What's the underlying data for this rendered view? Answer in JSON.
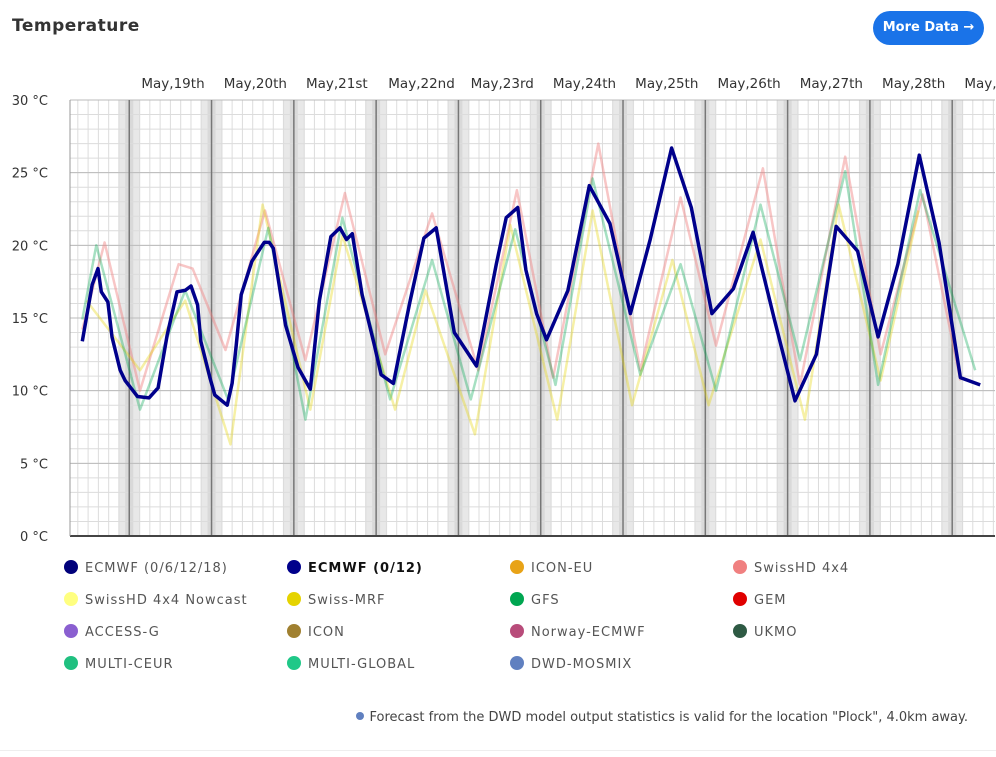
{
  "header": {
    "title": "Temperature",
    "button": "More Data →"
  },
  "chart_data": {
    "type": "line",
    "grid": true,
    "xlim": [
      0.28,
      11.52
    ],
    "xticks": [
      {
        "value": 1.5,
        "label": "May,19th"
      },
      {
        "value": 2.5,
        "label": "May,20th"
      },
      {
        "value": 3.5,
        "label": "May,21st"
      },
      {
        "value": 4.5,
        "label": "May,22nd"
      },
      {
        "value": 5.5,
        "label": "May,23rd"
      },
      {
        "value": 6.5,
        "label": "May,24th"
      },
      {
        "value": 7.5,
        "label": "May,25th"
      },
      {
        "value": 8.5,
        "label": "May,26th"
      },
      {
        "value": 9.5,
        "label": "May,27th"
      },
      {
        "value": 10.5,
        "label": "May,28th"
      },
      {
        "value": 11.5,
        "label": "May,"
      }
    ],
    "ylim": [
      0,
      30
    ],
    "yticks": [
      {
        "value": 0,
        "label": "0 °C"
      },
      {
        "value": 5,
        "label": "5 °C"
      },
      {
        "value": 10,
        "label": "10 °C"
      },
      {
        "value": 15,
        "label": "15 °C"
      },
      {
        "value": 20,
        "label": "20 °C"
      },
      {
        "value": 25,
        "label": "25 °C"
      },
      {
        "value": 30,
        "label": "30 °C"
      }
    ],
    "series": [
      {
        "name": "ECMWF (0/6/12/18)",
        "color": "#00007a",
        "x": [],
        "values": []
      },
      {
        "name": "ECMWF (0/12)",
        "color": "#00008b",
        "bold": true,
        "x": [
          0.43,
          0.55,
          0.62,
          0.66,
          0.74,
          0.79,
          0.89,
          0.95,
          1.1,
          1.24,
          1.35,
          1.46,
          1.58,
          1.68,
          1.75,
          1.83,
          1.87,
          1.98,
          2.04,
          2.19,
          2.25,
          2.3,
          2.36,
          2.49,
          2.64,
          2.7,
          2.75,
          2.9,
          3.05,
          3.2,
          3.31,
          3.45,
          3.56,
          3.64,
          3.71,
          3.83,
          3.98,
          4.06,
          4.21,
          4.41,
          4.58,
          4.73,
          4.95,
          5.22,
          5.46,
          5.58,
          5.72,
          5.82,
          5.95,
          6.07,
          6.33,
          6.59,
          6.84,
          7.09,
          7.33,
          7.59,
          7.83,
          8.08,
          8.34,
          8.58,
          8.84,
          9.09,
          9.35,
          9.59,
          9.85,
          10.1,
          10.34,
          10.6,
          10.84,
          11.1,
          11.34
        ],
        "values": [
          13.4,
          17.3,
          18.4,
          16.8,
          16.1,
          13.7,
          11.4,
          10.7,
          9.6,
          9.5,
          10.2,
          13.8,
          16.8,
          16.9,
          17.2,
          15.9,
          13.4,
          10.9,
          9.7,
          9.0,
          10.5,
          13.1,
          16.6,
          18.9,
          20.2,
          20.2,
          19.8,
          14.5,
          11.6,
          10.1,
          16.2,
          20.6,
          21.2,
          20.4,
          20.8,
          16.6,
          13.1,
          11.1,
          10.5,
          16.1,
          20.5,
          21.2,
          14.0,
          11.7,
          18.7,
          21.9,
          22.6,
          18.3,
          15.3,
          13.5,
          16.9,
          24.1,
          21.5,
          15.3,
          20.4,
          26.7,
          22.6,
          15.3,
          17.0,
          20.9,
          14.9,
          9.3,
          12.5,
          21.3,
          19.6,
          13.7,
          18.7,
          26.2,
          20.2,
          10.9,
          10.4
        ]
      },
      {
        "name": "ICON-EU",
        "color": "#e8a317",
        "x": [],
        "values": []
      },
      {
        "name": "SwissHD 4x4",
        "color": "#f08080",
        "opacity": 0.45,
        "x": [
          0.43,
          0.7,
          1.13,
          1.6,
          1.77,
          2.17,
          2.65,
          3.14,
          3.62,
          4.11,
          4.68,
          5.24,
          5.71,
          6.15,
          6.7,
          7.21,
          7.7,
          8.13,
          8.7,
          9.15,
          9.7,
          10.13,
          10.64,
          11.1
        ],
        "values": [
          14.2,
          20.2,
          10.0,
          18.7,
          18.4,
          12.8,
          22.4,
          12.1,
          23.6,
          12.5,
          22.2,
          11.4,
          23.8,
          10.9,
          27.0,
          11.4,
          23.3,
          13.1,
          25.3,
          10.4,
          26.1,
          12.5,
          23.5,
          10.7
        ]
      },
      {
        "name": "SwissHD 4x4 Nowcast",
        "color": "#ffff80",
        "x": [],
        "values": []
      },
      {
        "name": "Swiss-MRF",
        "color": "#e5d300",
        "opacity": 0.35,
        "x": [
          0.48,
          1.13,
          1.68,
          2.23,
          2.62,
          3.2,
          3.59,
          4.23,
          4.6,
          5.2,
          5.63,
          6.2,
          6.63,
          7.11,
          7.6,
          8.04,
          8.67,
          9.21,
          9.62,
          10.13,
          10.59
        ],
        "values": [
          16.2,
          11.4,
          16.2,
          6.3,
          22.8,
          8.7,
          20.7,
          8.7,
          16.9,
          7.0,
          21.4,
          8.0,
          22.4,
          9.0,
          19.0,
          9.0,
          20.4,
          8.0,
          22.8,
          10.7,
          22.4
        ]
      },
      {
        "name": "GFS",
        "color": "#00a651",
        "opacity": 0.35,
        "x": [
          0.43,
          0.6,
          1.13,
          1.68,
          2.2,
          2.69,
          3.14,
          3.59,
          4.17,
          4.68,
          5.15,
          5.69,
          6.18,
          6.63,
          7.21,
          7.7,
          8.13,
          8.67,
          9.15,
          9.7,
          10.1,
          10.61,
          11.28
        ],
        "values": [
          14.9,
          20.0,
          8.7,
          16.9,
          9.4,
          21.2,
          8.0,
          21.9,
          9.4,
          19.0,
          9.4,
          21.1,
          10.4,
          24.6,
          11.1,
          18.7,
          10.0,
          22.8,
          12.1,
          25.1,
          10.4,
          23.8,
          11.4
        ]
      },
      {
        "name": "GEM",
        "color": "#e00000",
        "x": [],
        "values": []
      },
      {
        "name": "ACCESS-G",
        "color": "#8a5fd0",
        "x": [],
        "values": []
      },
      {
        "name": "ICON",
        "color": "#a08030",
        "x": [],
        "values": []
      },
      {
        "name": "Norway-ECMWF",
        "color": "#b84c7a",
        "x": [],
        "values": []
      },
      {
        "name": "UKMO",
        "color": "#2e5a44",
        "x": [],
        "values": []
      },
      {
        "name": "MULTI-CEUR",
        "color": "#20c080",
        "x": [],
        "values": []
      },
      {
        "name": "MULTI-GLOBAL",
        "color": "#20c888",
        "x": [],
        "values": []
      },
      {
        "name": "DWD-MOSMIX",
        "color": "#6080c0",
        "x": [],
        "values": []
      }
    ]
  },
  "footnote": "Forecast from the DWD model output statistics is valid for the location \"Plock\", 4.0km away."
}
